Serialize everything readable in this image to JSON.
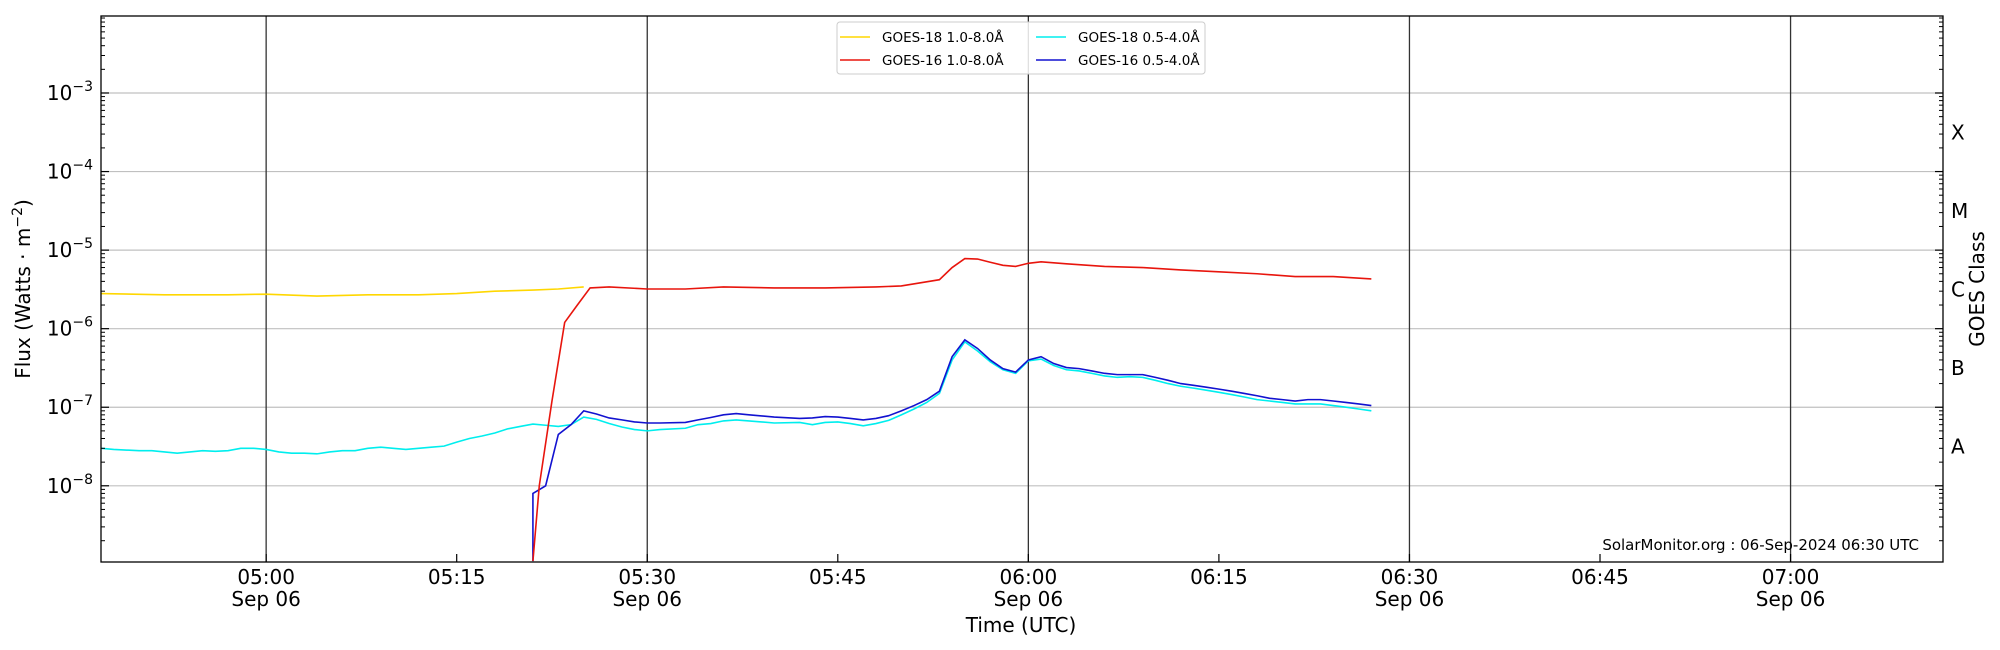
{
  "chart_data": {
    "type": "line",
    "xlabel": "Time (UTC)",
    "ylabel": "Flux (Watts · m",
    "ylabel_sup": "−2",
    "ylabel_end": ")",
    "y2label": "GOES Class",
    "credit": "SolarMonitor.org : 06-Sep-2024 06:30 UTC",
    "yscale": "log",
    "grid": "horizontal",
    "legend_position": "top-center",
    "xlim": [
      "04:47",
      "07:12"
    ],
    "ylim_exp": [
      -8.97,
      -2.02
    ],
    "y_ticks": [
      {
        "exp": -8,
        "base": "10",
        "sup": "−8"
      },
      {
        "exp": -7,
        "base": "10",
        "sup": "−7"
      },
      {
        "exp": -6,
        "base": "10",
        "sup": "−6"
      },
      {
        "exp": -5,
        "base": "10",
        "sup": "−5"
      },
      {
        "exp": -4,
        "base": "10",
        "sup": "−4"
      },
      {
        "exp": -3,
        "base": "10",
        "sup": "−3"
      }
    ],
    "classes": [
      {
        "label": "A",
        "exp": -7.5
      },
      {
        "label": "B",
        "exp": -6.5
      },
      {
        "label": "C",
        "exp": -5.5
      },
      {
        "label": "M",
        "exp": -4.5
      },
      {
        "label": "X",
        "exp": -3.5
      }
    ],
    "x_ticks": [
      {
        "t": "05:00",
        "time": "05:00",
        "date": "Sep 06",
        "vline": true
      },
      {
        "t": "05:15",
        "time": "05:15",
        "date": "",
        "vline": false
      },
      {
        "t": "05:30",
        "time": "05:30",
        "date": "Sep 06",
        "vline": true
      },
      {
        "t": "05:45",
        "time": "05:45",
        "date": "",
        "vline": false
      },
      {
        "t": "06:00",
        "time": "06:00",
        "date": "Sep 06",
        "vline": true
      },
      {
        "t": "06:15",
        "time": "06:15",
        "date": "",
        "vline": false
      },
      {
        "t": "06:30",
        "time": "06:30",
        "date": "Sep 06",
        "vline": true
      },
      {
        "t": "06:45",
        "time": "06:45",
        "date": "",
        "vline": false
      },
      {
        "t": "07:00",
        "time": "07:00",
        "date": "Sep 06",
        "vline": true
      }
    ],
    "series": [
      {
        "name": "GOES-18 1.0-8.0Å",
        "color": "#ffd700",
        "points": [
          [
            "04:47",
            2.8e-06
          ],
          [
            "04:52",
            2.7e-06
          ],
          [
            "04:57",
            2.7e-06
          ],
          [
            "05:00",
            2.75e-06
          ],
          [
            "05:04",
            2.6e-06
          ],
          [
            "05:08",
            2.7e-06
          ],
          [
            "05:12",
            2.7e-06
          ],
          [
            "05:15",
            2.8e-06
          ],
          [
            "05:18",
            3e-06
          ],
          [
            "05:21",
            3.1e-06
          ],
          [
            "05:23",
            3.2e-06
          ],
          [
            "05:25",
            3.4e-06
          ]
        ]
      },
      {
        "name": "GOES-16 1.0-8.0Å",
        "color": "#e8150d",
        "points": [
          [
            "05:21",
            1.1e-09
          ],
          [
            "05:21.5",
            1e-08
          ],
          [
            "05:22.5",
            1.2e-07
          ],
          [
            "05:23.5",
            1.2e-06
          ],
          [
            "05:24.5",
            2e-06
          ],
          [
            "05:25.5",
            3.3e-06
          ],
          [
            "05:27",
            3.4e-06
          ],
          [
            "05:30",
            3.2e-06
          ],
          [
            "05:33",
            3.2e-06
          ],
          [
            "05:36",
            3.4e-06
          ],
          [
            "05:40",
            3.3e-06
          ],
          [
            "05:44",
            3.3e-06
          ],
          [
            "05:48",
            3.4e-06
          ],
          [
            "05:50",
            3.5e-06
          ],
          [
            "05:53",
            4.2e-06
          ],
          [
            "05:54",
            6e-06
          ],
          [
            "05:55",
            7.8e-06
          ],
          [
            "05:56",
            7.7e-06
          ],
          [
            "05:57",
            7e-06
          ],
          [
            "05:58",
            6.4e-06
          ],
          [
            "05:59",
            6.2e-06
          ],
          [
            "06:00",
            6.8e-06
          ],
          [
            "06:01",
            7.1e-06
          ],
          [
            "06:03",
            6.7e-06
          ],
          [
            "06:06",
            6.2e-06
          ],
          [
            "06:09",
            6e-06
          ],
          [
            "06:12",
            5.6e-06
          ],
          [
            "06:15",
            5.3e-06
          ],
          [
            "06:18",
            5e-06
          ],
          [
            "06:21",
            4.6e-06
          ],
          [
            "06:24",
            4.6e-06
          ],
          [
            "06:27",
            4.3e-06
          ]
        ]
      },
      {
        "name": "GOES-18 0.5-4.0Å",
        "color": "#00eeee",
        "points": [
          [
            "04:47",
            3e-08
          ],
          [
            "04:48",
            2.9e-08
          ],
          [
            "04:50",
            2.8e-08
          ],
          [
            "04:51",
            2.8e-08
          ],
          [
            "04:52",
            2.7e-08
          ],
          [
            "04:53",
            2.6e-08
          ],
          [
            "04:54",
            2.7e-08
          ],
          [
            "04:55",
            2.8e-08
          ],
          [
            "04:56",
            2.75e-08
          ],
          [
            "04:57",
            2.8e-08
          ],
          [
            "04:58",
            3e-08
          ],
          [
            "04:59",
            3e-08
          ],
          [
            "05:00",
            2.9e-08
          ],
          [
            "05:01",
            2.7e-08
          ],
          [
            "05:02",
            2.6e-08
          ],
          [
            "05:03",
            2.6e-08
          ],
          [
            "05:04",
            2.55e-08
          ],
          [
            "05:05",
            2.7e-08
          ],
          [
            "05:06",
            2.8e-08
          ],
          [
            "05:07",
            2.8e-08
          ],
          [
            "05:08",
            3e-08
          ],
          [
            "05:09",
            3.1e-08
          ],
          [
            "05:10",
            3e-08
          ],
          [
            "05:11",
            2.9e-08
          ],
          [
            "05:12",
            3e-08
          ],
          [
            "05:13",
            3.1e-08
          ],
          [
            "05:14",
            3.2e-08
          ],
          [
            "05:15",
            3.6e-08
          ],
          [
            "05:16",
            4e-08
          ],
          [
            "05:17",
            4.3e-08
          ],
          [
            "05:18",
            4.7e-08
          ],
          [
            "05:19",
            5.3e-08
          ],
          [
            "05:20",
            5.7e-08
          ],
          [
            "05:21",
            6.1e-08
          ],
          [
            "05:22",
            5.9e-08
          ],
          [
            "05:23",
            5.7e-08
          ],
          [
            "05:24",
            6e-08
          ],
          [
            "05:25",
            7.5e-08
          ],
          [
            "05:26",
            7e-08
          ],
          [
            "05:27",
            6.2e-08
          ],
          [
            "05:28",
            5.6e-08
          ],
          [
            "05:29",
            5.2e-08
          ],
          [
            "05:30",
            5e-08
          ],
          [
            "05:31",
            5.2e-08
          ],
          [
            "05:33",
            5.4e-08
          ],
          [
            "05:34",
            6e-08
          ],
          [
            "05:35",
            6.2e-08
          ],
          [
            "05:36",
            6.7e-08
          ],
          [
            "05:37",
            6.9e-08
          ],
          [
            "05:38",
            6.7e-08
          ],
          [
            "05:40",
            6.3e-08
          ],
          [
            "05:42",
            6.4e-08
          ],
          [
            "05:43",
            6e-08
          ],
          [
            "05:44",
            6.4e-08
          ],
          [
            "05:45",
            6.5e-08
          ],
          [
            "05:46",
            6.2e-08
          ],
          [
            "05:47",
            5.8e-08
          ],
          [
            "05:48",
            6.2e-08
          ],
          [
            "05:49",
            6.8e-08
          ],
          [
            "05:50",
            8e-08
          ],
          [
            "05:51",
            9.5e-08
          ],
          [
            "05:52",
            1.15e-07
          ],
          [
            "05:53",
            1.5e-07
          ],
          [
            "05:54",
            4e-07
          ],
          [
            "05:55",
            6.8e-07
          ],
          [
            "05:56",
            5.2e-07
          ],
          [
            "05:57",
            3.8e-07
          ],
          [
            "05:58",
            3e-07
          ],
          [
            "05:59",
            2.7e-07
          ],
          [
            "06:00",
            3.9e-07
          ],
          [
            "06:01",
            4.1e-07
          ],
          [
            "06:02",
            3.4e-07
          ],
          [
            "06:03",
            3e-07
          ],
          [
            "06:04",
            2.9e-07
          ],
          [
            "06:05",
            2.7e-07
          ],
          [
            "06:06",
            2.5e-07
          ],
          [
            "06:07",
            2.4e-07
          ],
          [
            "06:08",
            2.45e-07
          ],
          [
            "06:09",
            2.4e-07
          ],
          [
            "06:10",
            2.2e-07
          ],
          [
            "06:11",
            2e-07
          ],
          [
            "06:12",
            1.85e-07
          ],
          [
            "06:13",
            1.75e-07
          ],
          [
            "06:14",
            1.65e-07
          ],
          [
            "06:15",
            1.55e-07
          ],
          [
            "06:16",
            1.45e-07
          ],
          [
            "06:17",
            1.35e-07
          ],
          [
            "06:18",
            1.25e-07
          ],
          [
            "06:19",
            1.2e-07
          ],
          [
            "06:20",
            1.15e-07
          ],
          [
            "06:21",
            1.1e-07
          ],
          [
            "06:22",
            1.1e-07
          ],
          [
            "06:23",
            1.1e-07
          ],
          [
            "06:24",
            1.05e-07
          ],
          [
            "06:25",
            1e-07
          ],
          [
            "06:26",
            9.5e-08
          ],
          [
            "06:27",
            9e-08
          ]
        ]
      },
      {
        "name": "GOES-16 0.5-4.0Å",
        "color": "#1212d0",
        "points": [
          [
            "05:21",
            1.1e-09
          ],
          [
            "05:21",
            8e-09
          ],
          [
            "05:22",
            1e-08
          ],
          [
            "05:23",
            4.5e-08
          ],
          [
            "05:24",
            6e-08
          ],
          [
            "05:25",
            9e-08
          ],
          [
            "05:26",
            8.2e-08
          ],
          [
            "05:27",
            7.3e-08
          ],
          [
            "05:28",
            6.9e-08
          ],
          [
            "05:29",
            6.5e-08
          ],
          [
            "05:30",
            6.3e-08
          ],
          [
            "05:31",
            6.3e-08
          ],
          [
            "05:33",
            6.4e-08
          ],
          [
            "05:34",
            6.9e-08
          ],
          [
            "05:35",
            7.4e-08
          ],
          [
            "05:36",
            8e-08
          ],
          [
            "05:37",
            8.3e-08
          ],
          [
            "05:38",
            8e-08
          ],
          [
            "05:40",
            7.5e-08
          ],
          [
            "05:42",
            7.2e-08
          ],
          [
            "05:43",
            7.3e-08
          ],
          [
            "05:44",
            7.6e-08
          ],
          [
            "05:45",
            7.5e-08
          ],
          [
            "05:46",
            7.2e-08
          ],
          [
            "05:47",
            6.9e-08
          ],
          [
            "05:48",
            7.2e-08
          ],
          [
            "05:49",
            7.8e-08
          ],
          [
            "05:50",
            9e-08
          ],
          [
            "05:51",
            1.05e-07
          ],
          [
            "05:52",
            1.25e-07
          ],
          [
            "05:53",
            1.6e-07
          ],
          [
            "05:54",
            4.4e-07
          ],
          [
            "05:55",
            7.2e-07
          ],
          [
            "05:56",
            5.6e-07
          ],
          [
            "05:57",
            4e-07
          ],
          [
            "05:58",
            3.1e-07
          ],
          [
            "05:59",
            2.8e-07
          ],
          [
            "06:00",
            4e-07
          ],
          [
            "06:01",
            4.4e-07
          ],
          [
            "06:02",
            3.6e-07
          ],
          [
            "06:03",
            3.2e-07
          ],
          [
            "06:04",
            3.1e-07
          ],
          [
            "06:05",
            2.9e-07
          ],
          [
            "06:06",
            2.7e-07
          ],
          [
            "06:07",
            2.6e-07
          ],
          [
            "06:08",
            2.6e-07
          ],
          [
            "06:09",
            2.6e-07
          ],
          [
            "06:10",
            2.4e-07
          ],
          [
            "06:11",
            2.2e-07
          ],
          [
            "06:12",
            2e-07
          ],
          [
            "06:13",
            1.9e-07
          ],
          [
            "06:14",
            1.8e-07
          ],
          [
            "06:15",
            1.7e-07
          ],
          [
            "06:16",
            1.6e-07
          ],
          [
            "06:17",
            1.5e-07
          ],
          [
            "06:18",
            1.4e-07
          ],
          [
            "06:19",
            1.3e-07
          ],
          [
            "06:20",
            1.25e-07
          ],
          [
            "06:21",
            1.2e-07
          ],
          [
            "06:22",
            1.25e-07
          ],
          [
            "06:23",
            1.25e-07
          ],
          [
            "06:24",
            1.2e-07
          ],
          [
            "06:25",
            1.15e-07
          ],
          [
            "06:26",
            1.1e-07
          ],
          [
            "06:27",
            1.05e-07
          ]
        ]
      }
    ]
  }
}
